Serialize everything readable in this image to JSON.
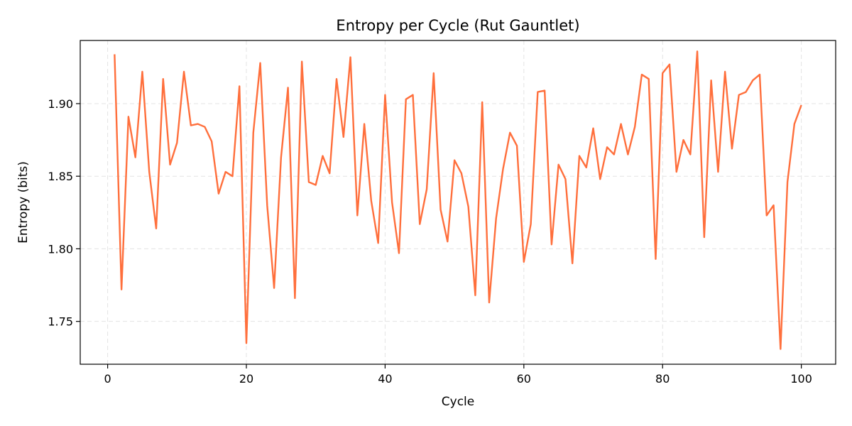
{
  "chart_data": {
    "type": "line",
    "title": "Entropy per Cycle (Rut Gauntlet)",
    "xlabel": "Cycle",
    "ylabel": "Entropy (bits)",
    "xlim": [
      -3.95,
      104.95
    ],
    "ylim": [
      1.7205,
      1.9435
    ],
    "xticks": [
      0,
      20,
      40,
      60,
      80,
      100
    ],
    "xtick_labels": [
      "0",
      "20",
      "40",
      "60",
      "80",
      "100"
    ],
    "yticks": [
      1.75,
      1.8,
      1.85,
      1.9
    ],
    "ytick_labels": [
      "1.75",
      "1.80",
      "1.85",
      "1.90"
    ],
    "grid": true,
    "series": [
      {
        "color": "#ff6f3c",
        "x": [
          1,
          2,
          3,
          4,
          5,
          6,
          7,
          8,
          9,
          10,
          11,
          12,
          13,
          14,
          15,
          16,
          17,
          18,
          19,
          20,
          21,
          22,
          23,
          24,
          25,
          26,
          27,
          28,
          29,
          30,
          31,
          32,
          33,
          34,
          35,
          36,
          37,
          38,
          39,
          40,
          41,
          42,
          43,
          44,
          45,
          46,
          47,
          48,
          49,
          50,
          51,
          52,
          53,
          54,
          55,
          56,
          57,
          58,
          59,
          60,
          61,
          62,
          63,
          64,
          65,
          66,
          67,
          68,
          69,
          70,
          71,
          72,
          73,
          74,
          75,
          76,
          77,
          78,
          79,
          80,
          81,
          82,
          83,
          84,
          85,
          86,
          87,
          88,
          89,
          90,
          91,
          92,
          93,
          94,
          95,
          96,
          97,
          98,
          99,
          100
        ],
        "y": [
          1.934,
          1.772,
          1.891,
          1.863,
          1.922,
          1.853,
          1.814,
          1.917,
          1.858,
          1.873,
          1.922,
          1.885,
          1.886,
          1.884,
          1.874,
          1.838,
          1.853,
          1.85,
          1.912,
          1.735,
          1.88,
          1.928,
          1.83,
          1.773,
          1.863,
          1.911,
          1.766,
          1.929,
          1.846,
          1.844,
          1.864,
          1.852,
          1.917,
          1.877,
          1.932,
          1.823,
          1.886,
          1.833,
          1.804,
          1.906,
          1.832,
          1.797,
          1.903,
          1.906,
          1.817,
          1.841,
          1.921,
          1.827,
          1.805,
          1.861,
          1.852,
          1.829,
          1.768,
          1.901,
          1.763,
          1.821,
          1.855,
          1.88,
          1.871,
          1.791,
          1.817,
          1.908,
          1.909,
          1.803,
          1.858,
          1.848,
          1.79,
          1.864,
          1.856,
          1.883,
          1.848,
          1.87,
          1.865,
          1.886,
          1.865,
          1.884,
          1.92,
          1.917,
          1.793,
          1.921,
          1.927,
          1.853,
          1.875,
          1.865,
          1.936,
          1.808,
          1.916,
          1.853,
          1.922,
          1.869,
          1.906,
          1.908,
          1.916,
          1.92,
          1.823,
          1.83,
          1.731,
          1.846,
          1.886,
          1.899
        ]
      }
    ]
  }
}
